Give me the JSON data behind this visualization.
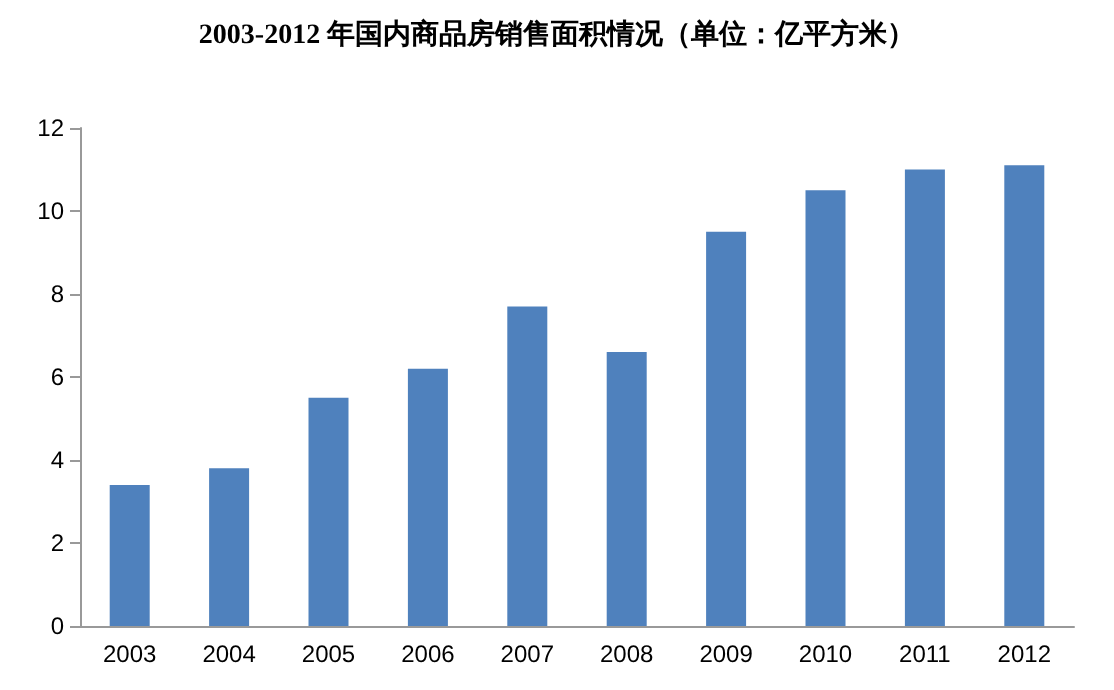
{
  "chart_data": {
    "type": "bar",
    "title": "2003-2012 年国内商品房销售面积情况（单位：亿平方米）",
    "categories": [
      "2003",
      "2004",
      "2005",
      "2006",
      "2007",
      "2008",
      "2009",
      "2010",
      "2011",
      "2012"
    ],
    "values": [
      3.4,
      3.8,
      5.5,
      6.2,
      7.7,
      6.6,
      9.5,
      10.5,
      11.0,
      11.1
    ],
    "color": "#4f81bd",
    "ylim": [
      0,
      12
    ],
    "yticks": [
      0,
      2,
      4,
      6,
      8,
      10,
      12
    ],
    "grid": false
  }
}
